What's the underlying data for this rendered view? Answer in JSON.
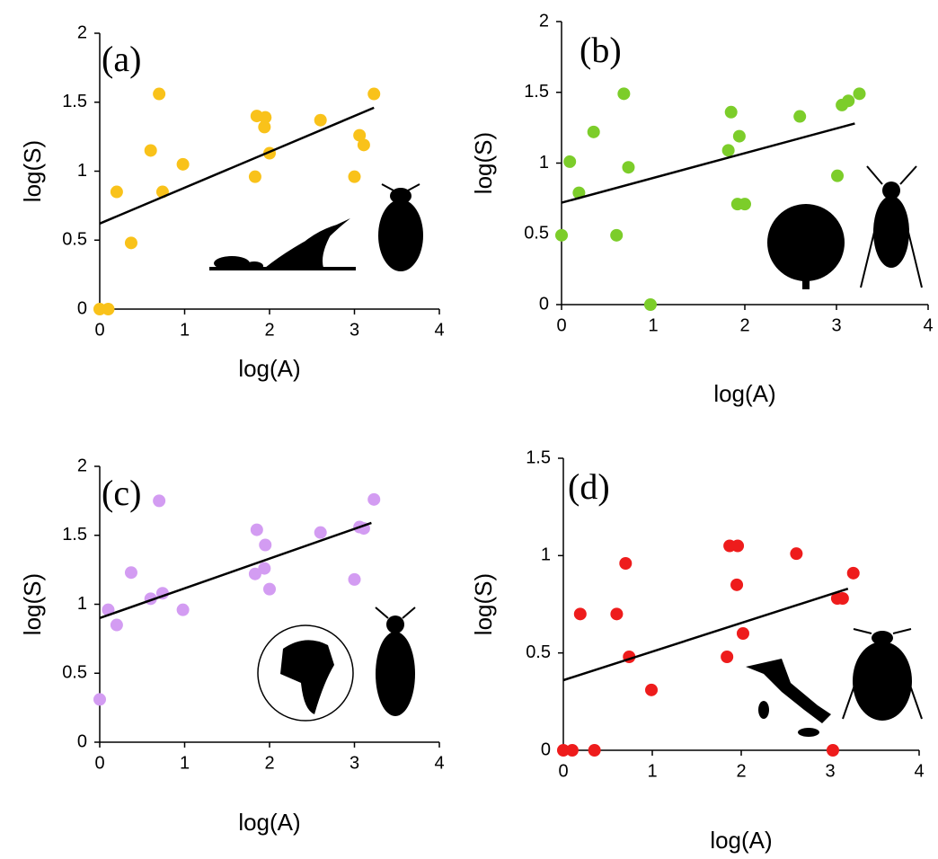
{
  "chart_data": [
    {
      "type": "scatter",
      "title": "(a)",
      "xlabel": "log(A)",
      "ylabel": "log(S)",
      "xlim": [
        0,
        4
      ],
      "xticks": [
        0,
        1,
        2,
        3,
        4
      ],
      "ylim": [
        0,
        2
      ],
      "yticks": [
        0,
        0.5,
        1,
        1.5,
        2
      ],
      "color": "#f9c21a",
      "x": [
        0,
        0.1,
        0.2,
        0.37,
        0.6,
        0.7,
        0.74,
        0.98,
        1.83,
        1.85,
        1.95,
        1.94,
        2.0,
        2.6,
        3.0,
        3.06,
        3.11,
        3.23
      ],
      "values": [
        0,
        0,
        0.85,
        0.48,
        1.15,
        1.56,
        0.85,
        1.05,
        0.96,
        1.4,
        1.39,
        1.32,
        1.13,
        1.37,
        0.96,
        1.26,
        1.19,
        1.56
      ],
      "trendline": {
        "x": [
          0,
          3.23
        ],
        "values": [
          0.62,
          1.46
        ]
      }
    },
    {
      "type": "scatter",
      "title": "(b)",
      "xlabel": "log(A)",
      "ylabel": "log(S)",
      "xlim": [
        0,
        4
      ],
      "xticks": [
        0,
        1,
        2,
        3,
        4
      ],
      "ylim": [
        0,
        2
      ],
      "yticks": [
        0,
        0.5,
        1,
        1.5,
        2
      ],
      "color": "#7ccd2a",
      "x": [
        0,
        0.09,
        0.19,
        0.35,
        0.6,
        0.68,
        0.73,
        0.97,
        1.82,
        1.85,
        1.94,
        1.92,
        2.0,
        2.6,
        3.01,
        3.06,
        3.13,
        3.25
      ],
      "values": [
        0.49,
        1.01,
        0.79,
        1.22,
        0.49,
        1.49,
        0.97,
        0,
        1.09,
        1.36,
        1.19,
        0.71,
        0.71,
        1.33,
        0.91,
        1.41,
        1.44,
        1.49
      ],
      "trendline": {
        "x": [
          0,
          3.2
        ],
        "values": [
          0.72,
          1.28
        ]
      }
    },
    {
      "type": "scatter",
      "title": "(c)",
      "xlabel": "log(A)",
      "ylabel": "log(S)",
      "xlim": [
        0,
        4
      ],
      "xticks": [
        0,
        1,
        2,
        3,
        4
      ],
      "ylim": [
        0,
        2
      ],
      "yticks": [
        0,
        0.5,
        1,
        1.5,
        2
      ],
      "color": "#d39cf2",
      "x": [
        0,
        0.1,
        0.2,
        0.37,
        0.6,
        0.7,
        0.74,
        0.98,
        1.83,
        1.85,
        1.95,
        1.94,
        2.0,
        2.6,
        3.0,
        3.06,
        3.11,
        3.23
      ],
      "values": [
        0.31,
        0.96,
        0.85,
        1.23,
        1.04,
        1.75,
        1.08,
        0.96,
        1.22,
        1.54,
        1.43,
        1.26,
        1.11,
        1.52,
        1.18,
        1.56,
        1.55,
        1.76
      ],
      "trendline": {
        "x": [
          0,
          3.2
        ],
        "values": [
          0.9,
          1.59
        ]
      }
    },
    {
      "type": "scatter",
      "title": "(d)",
      "xlabel": "log(A)",
      "ylabel": "log(S)",
      "xlim": [
        0,
        4
      ],
      "xticks": [
        0,
        1,
        2,
        3,
        4
      ],
      "ylim": [
        0,
        1.5
      ],
      "yticks": [
        0,
        0.5,
        1,
        1.5
      ],
      "color": "#ee1c1c",
      "x": [
        0,
        0.1,
        0.19,
        0.35,
        0.6,
        0.7,
        0.74,
        0.99,
        1.84,
        1.87,
        1.96,
        1.95,
        2.02,
        2.62,
        3.03,
        3.08,
        3.14,
        3.26
      ],
      "values": [
        0,
        0,
        0.7,
        0,
        0.7,
        0.96,
        0.48,
        0.31,
        0.48,
        1.05,
        1.05,
        0.85,
        0.6,
        1.01,
        0,
        0.78,
        0.78,
        0.91
      ],
      "trendline": {
        "x": [
          0,
          3.2
        ],
        "values": [
          0.36,
          0.83
        ]
      }
    }
  ]
}
